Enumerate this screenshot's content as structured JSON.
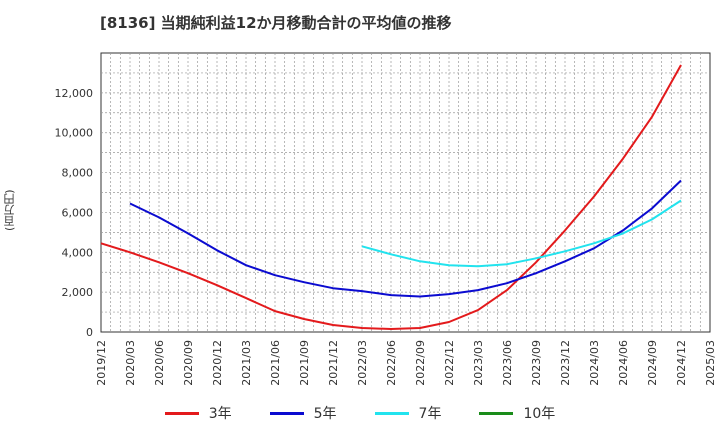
{
  "title": "[8136]  当期純利益12か月移動合計の平均値の推移",
  "chart_data": {
    "type": "line",
    "ylabel": "(百万円)",
    "ylim": [
      0,
      14000
    ],
    "yticks": [
      0,
      2000,
      4000,
      6000,
      8000,
      10000,
      12000
    ],
    "ytick_labels": [
      "0",
      "2,000",
      "4,000",
      "6,000",
      "8,000",
      "10,000",
      "12,000"
    ],
    "xticks": [
      "2019/12",
      "2020/03",
      "2020/06",
      "2020/09",
      "2020/12",
      "2021/03",
      "2021/06",
      "2021/09",
      "2021/12",
      "2022/03",
      "2022/06",
      "2022/09",
      "2022/12",
      "2023/03",
      "2023/06",
      "2023/09",
      "2023/12",
      "2024/03",
      "2024/06",
      "2024/09",
      "2024/12",
      "2025/03"
    ],
    "grid": true,
    "legend_position": "bottom",
    "series": [
      {
        "name": "3年",
        "color": "#e31a1c",
        "points": [
          [
            "2019/12",
            4450
          ],
          [
            "2020/03",
            4000
          ],
          [
            "2020/06",
            3500
          ],
          [
            "2020/09",
            2950
          ],
          [
            "2020/12",
            2350
          ],
          [
            "2021/03",
            1700
          ],
          [
            "2021/06",
            1050
          ],
          [
            "2021/09",
            650
          ],
          [
            "2021/12",
            350
          ],
          [
            "2022/03",
            200
          ],
          [
            "2022/06",
            150
          ],
          [
            "2022/09",
            200
          ],
          [
            "2022/12",
            500
          ],
          [
            "2023/03",
            1100
          ],
          [
            "2023/06",
            2100
          ],
          [
            "2023/09",
            3500
          ],
          [
            "2023/12",
            5100
          ],
          [
            "2024/03",
            6800
          ],
          [
            "2024/06",
            8700
          ],
          [
            "2024/09",
            10800
          ],
          [
            "2024/12",
            13400
          ]
        ]
      },
      {
        "name": "5年",
        "color": "#0b0bd0",
        "points": [
          [
            "2020/03",
            6450
          ],
          [
            "2020/06",
            5750
          ],
          [
            "2020/09",
            4950
          ],
          [
            "2020/12",
            4100
          ],
          [
            "2021/03",
            3350
          ],
          [
            "2021/06",
            2850
          ],
          [
            "2021/09",
            2500
          ],
          [
            "2021/12",
            2200
          ],
          [
            "2022/03",
            2050
          ],
          [
            "2022/06",
            1850
          ],
          [
            "2022/09",
            1780
          ],
          [
            "2022/12",
            1900
          ],
          [
            "2023/03",
            2100
          ],
          [
            "2023/06",
            2450
          ],
          [
            "2023/09",
            2950
          ],
          [
            "2023/12",
            3550
          ],
          [
            "2024/03",
            4200
          ],
          [
            "2024/06",
            5100
          ],
          [
            "2024/09",
            6200
          ],
          [
            "2024/12",
            7600
          ]
        ]
      },
      {
        "name": "7年",
        "color": "#22e3ee",
        "points": [
          [
            "2022/03",
            4300
          ],
          [
            "2022/06",
            3900
          ],
          [
            "2022/09",
            3550
          ],
          [
            "2022/12",
            3350
          ],
          [
            "2023/03",
            3300
          ],
          [
            "2023/06",
            3400
          ],
          [
            "2023/09",
            3700
          ],
          [
            "2023/12",
            4050
          ],
          [
            "2024/03",
            4450
          ],
          [
            "2024/06",
            4950
          ],
          [
            "2024/09",
            5650
          ],
          [
            "2024/12",
            6600
          ]
        ]
      },
      {
        "name": "10年",
        "color": "#1a8c1a",
        "points": []
      }
    ]
  }
}
